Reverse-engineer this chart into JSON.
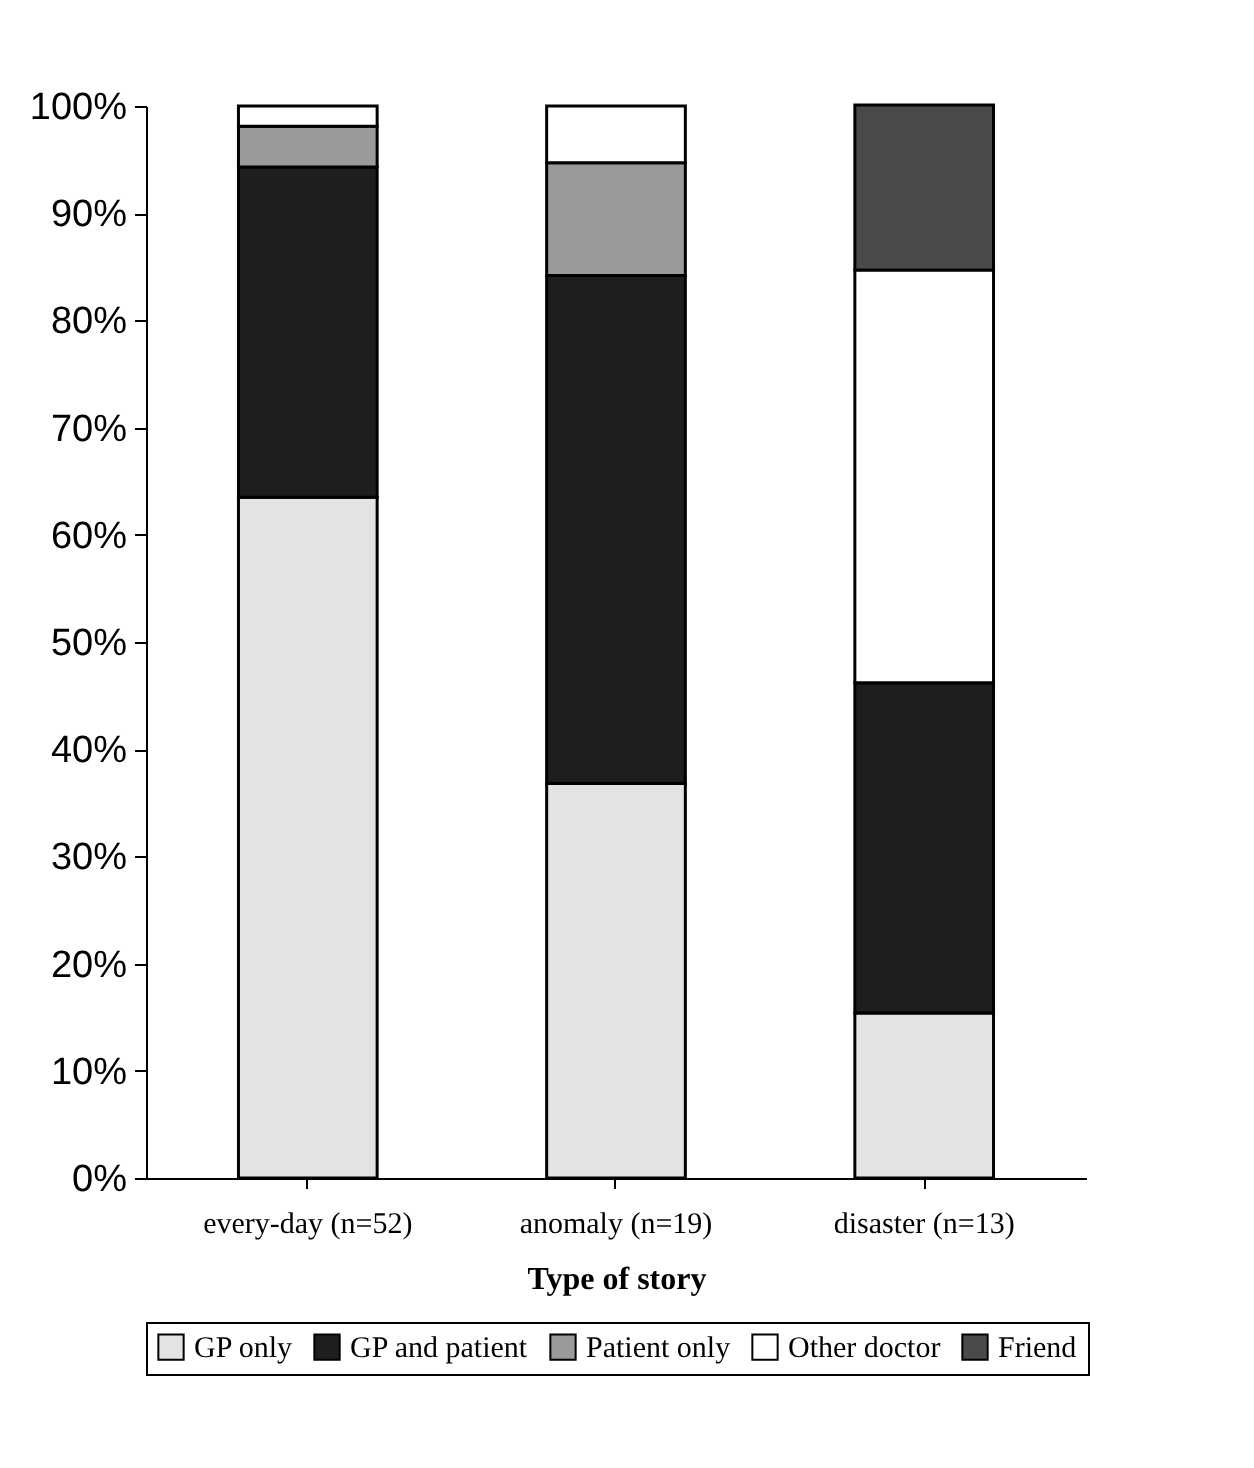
{
  "chart_data": {
    "type": "bar",
    "stacked": true,
    "xlabel": "Type of story",
    "categories": [
      "every-day (n=52)",
      "anomaly (n=19)",
      "disaster (n=13)"
    ],
    "series": [
      {
        "name": "GP only",
        "color": "#e3e3e3",
        "values": [
          63.5,
          36.8,
          15.4
        ]
      },
      {
        "name": "GP and patient",
        "color": "#1e1e1e",
        "values": [
          30.8,
          47.4,
          30.8
        ]
      },
      {
        "name": "Patient only",
        "color": "#9a9a9a",
        "values": [
          3.8,
          10.5,
          null
        ]
      },
      {
        "name": "Other doctor",
        "color": "#ffffff",
        "values": [
          1.9,
          5.3,
          38.5
        ]
      },
      {
        "name": "Friend",
        "color": "#4a4a4a",
        "values": [
          null,
          null,
          15.4
        ]
      }
    ],
    "ylim": [
      0,
      100
    ],
    "yticks": [
      {
        "value": 0,
        "label": "0%"
      },
      {
        "value": 10,
        "label": "10%"
      },
      {
        "value": 20,
        "label": "20%"
      },
      {
        "value": 30,
        "label": "30%"
      },
      {
        "value": 40,
        "label": "40%"
      },
      {
        "value": 50,
        "label": "50%"
      },
      {
        "value": 60,
        "label": "60%"
      },
      {
        "value": 70,
        "label": "70%"
      },
      {
        "value": 80,
        "label": "80%"
      },
      {
        "value": 90,
        "label": "90%"
      },
      {
        "value": 100,
        "label": "100%"
      }
    ],
    "grid": false,
    "legend": "bottom"
  }
}
